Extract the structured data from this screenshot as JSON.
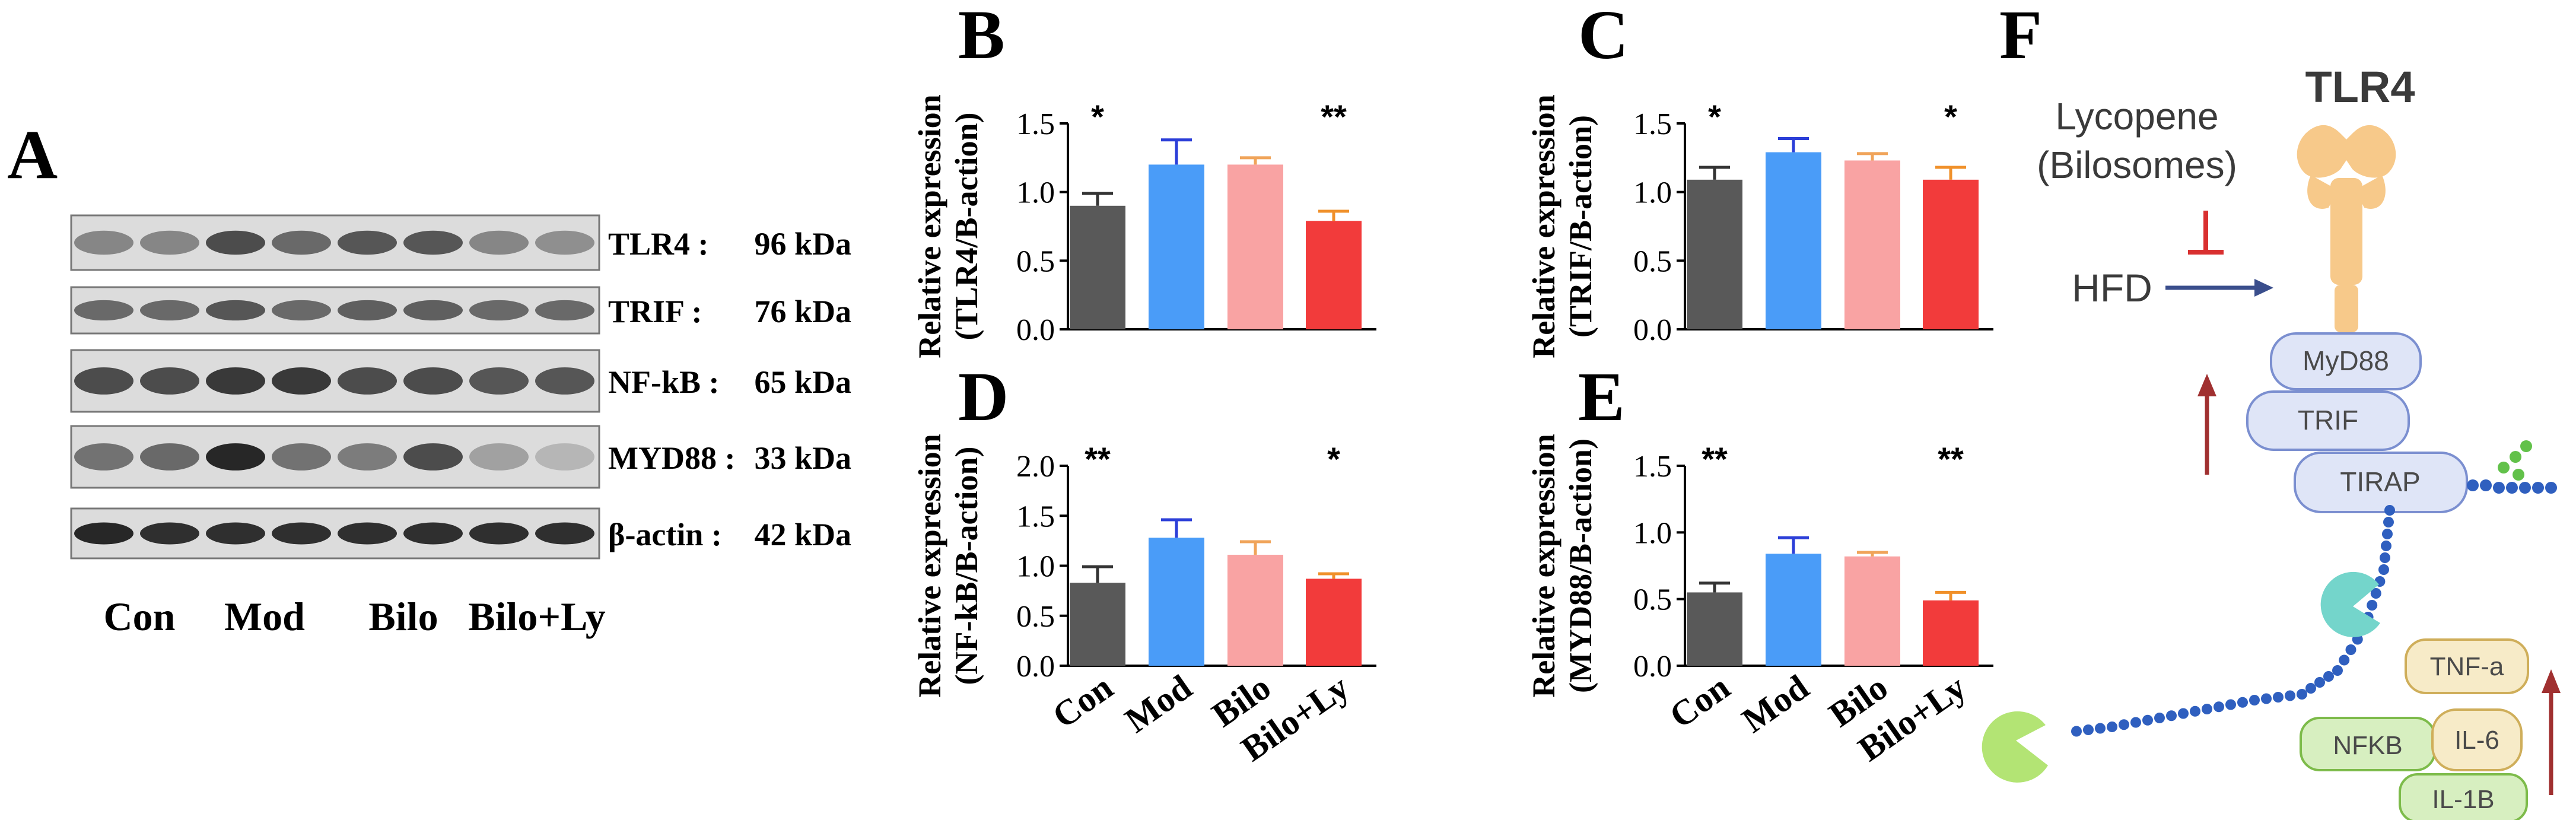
{
  "figure": {
    "panel_letters": {
      "A": "A",
      "B": "B",
      "C": "C",
      "D": "D",
      "E": "E",
      "F": "F"
    }
  },
  "blot": {
    "rows": [
      {
        "protein": "TLR4 :",
        "kda": "96 kDa"
      },
      {
        "protein": "TRIF :",
        "kda": "76 kDa"
      },
      {
        "protein": "NF-kB :",
        "kda": "65 kDa"
      },
      {
        "protein": "MYD88 :",
        "kda": "33 kDa"
      },
      {
        "protein": "β-actin :",
        "kda": "42 kDa"
      }
    ],
    "groups": [
      "Con",
      "Mod",
      "Bilo",
      "Bilo+Ly"
    ]
  },
  "colors": {
    "Con": "#595959",
    "Mod": "#4a9cf8",
    "Bilo": "#f9a3a3",
    "Bilo+Ly": "#f23b3b",
    "err_Con": "#333333",
    "err_Mod": "#2c3fd8",
    "err_Bilo": "#f0a45a",
    "err_BiloLy": "#f0902a",
    "inhibit": "#d93030",
    "arrow_blue": "#3a4e8c",
    "arrow_red": "#a03030",
    "protein_fill": "#dfe5f7",
    "protein_stroke": "#7b8fd0",
    "green_fill": "#d7efc0",
    "green_stroke": "#7dbb4a",
    "tan_fill": "#f7ebc8",
    "tan_stroke": "#cfae5a",
    "tlr4_fill": "#f7c98a",
    "bead_blue": "#2f5fbf"
  },
  "chart_data": [
    {
      "panel": "B",
      "type": "bar",
      "title": "",
      "xlabel": "",
      "ylabel_line1": "Relative expression",
      "ylabel_line2": "(TLR4/B-action)",
      "ylim": [
        0,
        1.5
      ],
      "yticks": [
        "0.0",
        "0.5",
        "1.0",
        "1.5"
      ],
      "categories": [
        "Con",
        "Mod",
        "Bilo",
        "Bilo+Ly"
      ],
      "values": [
        0.9,
        1.2,
        1.2,
        0.79
      ],
      "errors": [
        0.09,
        0.18,
        0.05,
        0.07
      ],
      "significance": [
        "*",
        "",
        "",
        "**"
      ]
    },
    {
      "panel": "C",
      "type": "bar",
      "title": "",
      "xlabel": "",
      "ylabel_line1": "Relative expression",
      "ylabel_line2": "(TRIF/B-action)",
      "ylim": [
        0,
        1.5
      ],
      "yticks": [
        "0.0",
        "0.5",
        "1.0",
        "1.5"
      ],
      "categories": [
        "Con",
        "Mod",
        "Bilo",
        "Bilo+Ly"
      ],
      "values": [
        1.09,
        1.29,
        1.23,
        1.09
      ],
      "errors": [
        0.09,
        0.1,
        0.05,
        0.09
      ],
      "significance": [
        "*",
        "",
        "",
        "*"
      ]
    },
    {
      "panel": "D",
      "type": "bar",
      "title": "",
      "xlabel": "",
      "ylabel_line1": "Relative expression",
      "ylabel_line2": "(NF-kB/B-action)",
      "ylim": [
        0,
        2.0
      ],
      "yticks": [
        "0.0",
        "0.5",
        "1.0",
        "1.5",
        "2.0"
      ],
      "categories": [
        "Con",
        "Mod",
        "Bilo",
        "Bilo+Ly"
      ],
      "values": [
        0.83,
        1.28,
        1.11,
        0.87
      ],
      "errors": [
        0.16,
        0.18,
        0.13,
        0.05
      ],
      "significance": [
        "**",
        "",
        "",
        "*"
      ]
    },
    {
      "panel": "E",
      "type": "bar",
      "title": "",
      "xlabel": "",
      "ylabel_line1": "Relative expression",
      "ylabel_line2": "(MYD88/B-action)",
      "ylim": [
        0,
        1.5
      ],
      "yticks": [
        "0.0",
        "0.5",
        "1.0",
        "1.5"
      ],
      "categories": [
        "Con",
        "Mod",
        "Bilo",
        "Bilo+Ly"
      ],
      "values": [
        0.55,
        0.84,
        0.82,
        0.49
      ],
      "errors": [
        0.07,
        0.12,
        0.03,
        0.06
      ],
      "significance": [
        "**",
        "",
        "",
        "**"
      ]
    }
  ],
  "pathway": {
    "receptor": "TLR4",
    "treatment_line1": "Lycopene",
    "treatment_line2": "(Bilosomes)",
    "stimulus": "HFD",
    "adaptors": [
      "MyD88",
      "TRIF",
      "TIRAP"
    ],
    "nfkb": "NFKB",
    "cytokines": [
      "TNF-a",
      "IL-6",
      "IL-1B"
    ]
  }
}
